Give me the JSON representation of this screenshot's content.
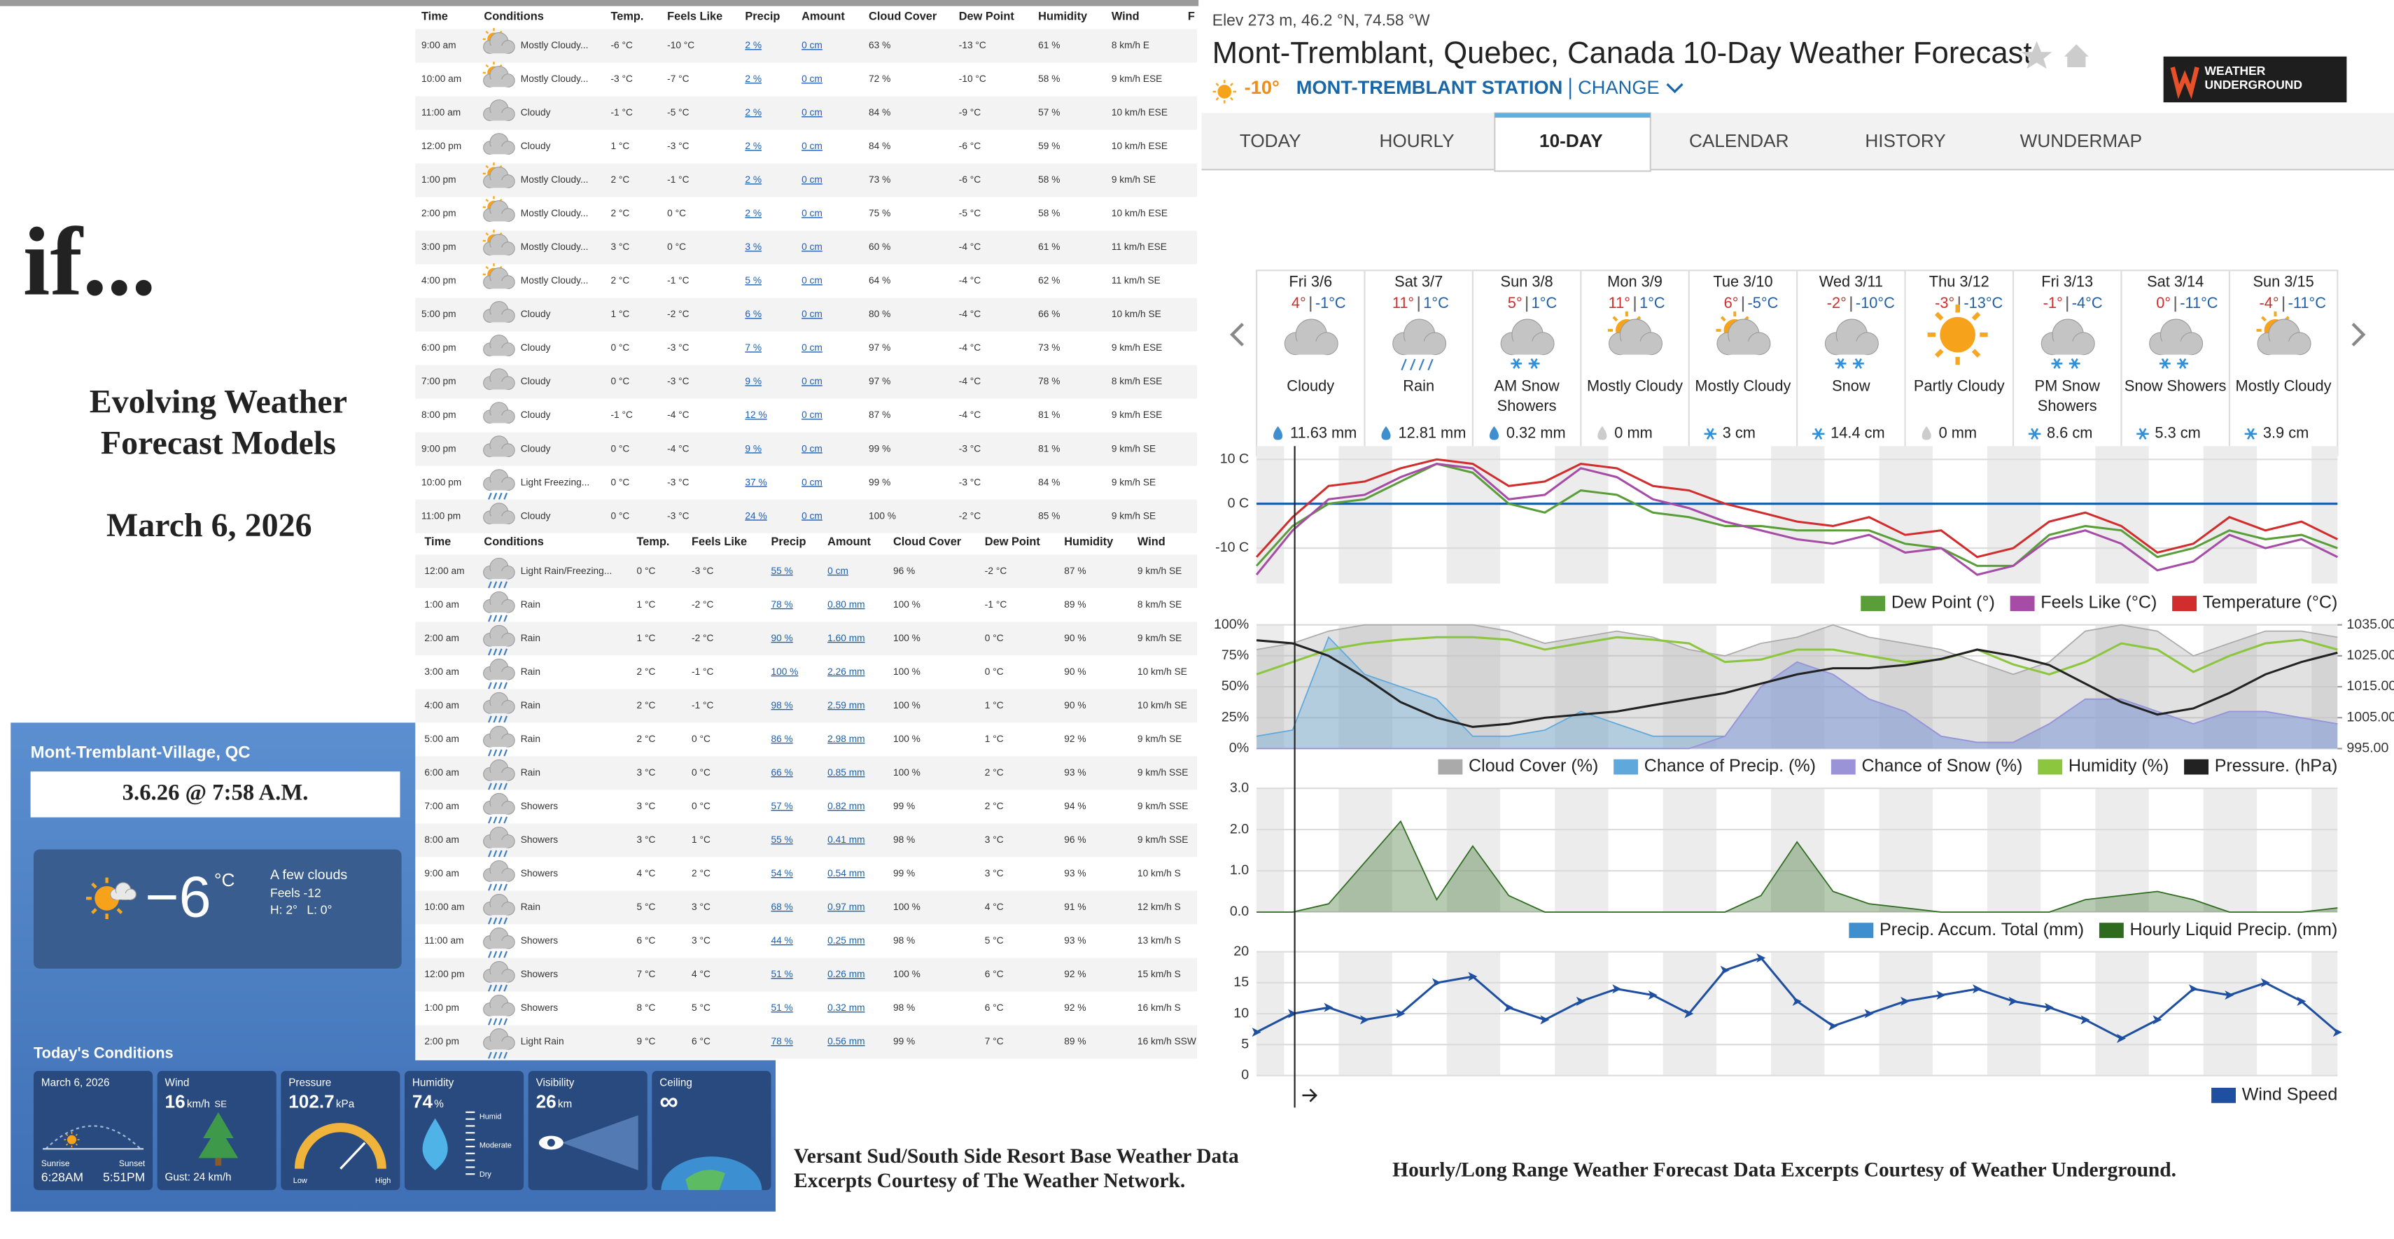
{
  "intro": {
    "headline": "if...",
    "title_lines": [
      "Evolving Weather",
      "Forecast Models"
    ],
    "date": "March 6, 2026"
  },
  "hourly_tables": [
    {
      "columns": [
        "Time",
        "Conditions",
        "Temp.",
        "Feels Like",
        "Precip",
        "Amount",
        "Cloud Cover",
        "Dew Point",
        "Humidity",
        "Wind",
        "F"
      ],
      "rows": [
        [
          "9:00 am",
          "Mostly Cloudy...",
          "-6 °C",
          "-10 °C",
          "2 %",
          "0 cm",
          "63 %",
          "-13 °C",
          "61 %",
          "8 km/h E"
        ],
        [
          "10:00 am",
          "Mostly Cloudy...",
          "-3 °C",
          "-7 °C",
          "2 %",
          "0 cm",
          "72 %",
          "-10 °C",
          "58 %",
          "9 km/h ESE"
        ],
        [
          "11:00 am",
          "Cloudy",
          "-1 °C",
          "-5 °C",
          "2 %",
          "0 cm",
          "84 %",
          "-9 °C",
          "57 %",
          "10 km/h ESE"
        ],
        [
          "12:00 pm",
          "Cloudy",
          "1 °C",
          "-3 °C",
          "2 %",
          "0 cm",
          "84 %",
          "-6 °C",
          "59 %",
          "10 km/h ESE"
        ],
        [
          "1:00 pm",
          "Mostly Cloudy...",
          "2 °C",
          "-1 °C",
          "2 %",
          "0 cm",
          "73 %",
          "-6 °C",
          "58 %",
          "9 km/h SE"
        ],
        [
          "2:00 pm",
          "Mostly Cloudy...",
          "2 °C",
          "0 °C",
          "2 %",
          "0 cm",
          "75 %",
          "-5 °C",
          "58 %",
          "10 km/h ESE"
        ],
        [
          "3:00 pm",
          "Mostly Cloudy...",
          "3 °C",
          "0 °C",
          "3 %",
          "0 cm",
          "60 %",
          "-4 °C",
          "61 %",
          "11 km/h ESE"
        ],
        [
          "4:00 pm",
          "Mostly Cloudy...",
          "2 °C",
          "-1 °C",
          "5 %",
          "0 cm",
          "64 %",
          "-4 °C",
          "62 %",
          "11 km/h SE"
        ],
        [
          "5:00 pm",
          "Cloudy",
          "1 °C",
          "-2 °C",
          "6 %",
          "0 cm",
          "80 %",
          "-4 °C",
          "66 %",
          "10 km/h SE"
        ],
        [
          "6:00 pm",
          "Cloudy",
          "0 °C",
          "-3 °C",
          "7 %",
          "0 cm",
          "97 %",
          "-4 °C",
          "73 %",
          "9 km/h ESE"
        ],
        [
          "7:00 pm",
          "Cloudy",
          "0 °C",
          "-3 °C",
          "9 %",
          "0 cm",
          "97 %",
          "-4 °C",
          "78 %",
          "8 km/h ESE"
        ],
        [
          "8:00 pm",
          "Cloudy",
          "-1 °C",
          "-4 °C",
          "12 %",
          "0 cm",
          "87 %",
          "-4 °C",
          "81 %",
          "9 km/h ESE"
        ],
        [
          "9:00 pm",
          "Cloudy",
          "0 °C",
          "-4 °C",
          "9 %",
          "0 cm",
          "99 %",
          "-3 °C",
          "81 %",
          "9 km/h SE"
        ],
        [
          "10:00 pm",
          "Light Freezing...",
          "0 °C",
          "-3 °C",
          "37 %",
          "0 cm",
          "99 %",
          "-3 °C",
          "84 %",
          "9 km/h SE"
        ],
        [
          "11:00 pm",
          "Cloudy",
          "0 °C",
          "-3 °C",
          "24 %",
          "0 cm",
          "100 %",
          "-2 °C",
          "85 %",
          "9 km/h SE"
        ]
      ]
    },
    {
      "columns": [
        "Time",
        "Conditions",
        "Temp.",
        "Feels Like",
        "Precip",
        "Amount",
        "Cloud Cover",
        "Dew Point",
        "Humidity",
        "Wind"
      ],
      "rows": [
        [
          "12:00 am",
          "Light Rain/Freezing...",
          "0 °C",
          "-3 °C",
          "55 %",
          "0 cm",
          "96 %",
          "-2 °C",
          "87 %",
          "9 km/h SE"
        ],
        [
          "1:00 am",
          "Rain",
          "1 °C",
          "-2 °C",
          "78 %",
          "0.80 mm",
          "100 %",
          "-1 °C",
          "89 %",
          "8 km/h SE"
        ],
        [
          "2:00 am",
          "Rain",
          "1 °C",
          "-2 °C",
          "90 %",
          "1.60 mm",
          "100 %",
          "0 °C",
          "90 %",
          "9 km/h SE"
        ],
        [
          "3:00 am",
          "Rain",
          "2 °C",
          "-1 °C",
          "100 %",
          "2.26 mm",
          "100 %",
          "0 °C",
          "90 %",
          "10 km/h SE"
        ],
        [
          "4:00 am",
          "Rain",
          "2 °C",
          "-1 °C",
          "98 %",
          "2.59 mm",
          "100 %",
          "1 °C",
          "90 %",
          "10 km/h SE"
        ],
        [
          "5:00 am",
          "Rain",
          "2 °C",
          "0 °C",
          "86 %",
          "2.98 mm",
          "100 %",
          "1 °C",
          "92 %",
          "9 km/h SE"
        ],
        [
          "6:00 am",
          "Rain",
          "3 °C",
          "0 °C",
          "66 %",
          "0.85 mm",
          "100 %",
          "2 °C",
          "93 %",
          "9 km/h SSE"
        ],
        [
          "7:00 am",
          "Showers",
          "3 °C",
          "0 °C",
          "57 %",
          "0.82 mm",
          "99 %",
          "2 °C",
          "94 %",
          "9 km/h SSE"
        ],
        [
          "8:00 am",
          "Showers",
          "3 °C",
          "1 °C",
          "55 %",
          "0.41 mm",
          "98 %",
          "3 °C",
          "96 %",
          "9 km/h SSE"
        ],
        [
          "9:00 am",
          "Showers",
          "4 °C",
          "2 °C",
          "54 %",
          "0.54 mm",
          "99 %",
          "3 °C",
          "93 %",
          "10 km/h S"
        ],
        [
          "10:00 am",
          "Rain",
          "5 °C",
          "3 °C",
          "68 %",
          "0.97 mm",
          "100 %",
          "4 °C",
          "91 %",
          "12 km/h S"
        ],
        [
          "11:00 am",
          "Showers",
          "6 °C",
          "3 °C",
          "44 %",
          "0.25 mm",
          "98 %",
          "5 °C",
          "93 %",
          "13 km/h S"
        ],
        [
          "12:00 pm",
          "Showers",
          "7 °C",
          "4 °C",
          "51 %",
          "0.26 mm",
          "100 %",
          "6 °C",
          "92 %",
          "15 km/h S"
        ],
        [
          "1:00 pm",
          "Showers",
          "8 °C",
          "5 °C",
          "51 %",
          "0.32 mm",
          "98 %",
          "6 °C",
          "92 %",
          "16 km/h S"
        ],
        [
          "2:00 pm",
          "Light Rain",
          "9 °C",
          "6 °C",
          "78 %",
          "0.56 mm",
          "99 %",
          "7 °C",
          "89 %",
          "16 km/h SSW"
        ]
      ]
    }
  ],
  "weather_network": {
    "location": "Mont-Tremblant-Village, QC",
    "timestamp": "3.6.26 @ 7:58 A.M.",
    "temperature": "−6",
    "unit": "°C",
    "condition": "A few clouds",
    "feels": "Feels -12",
    "high": "H: 2°",
    "low": "L: 0°",
    "section_title": "Today's Conditions",
    "cards": [
      {
        "title": "March 6, 2026",
        "sunrise_label": "Sunrise",
        "sunrise": "6:28AM",
        "sunset_label": "Sunset",
        "sunset": "5:51PM"
      },
      {
        "title": "Wind",
        "value": "16",
        "unit": "km/h",
        "direction": "SE",
        "detail": "Gust: 24 km/h"
      },
      {
        "title": "Pressure",
        "value": "102.7",
        "unit": "kPa",
        "scale": [
          "Low",
          "High"
        ]
      },
      {
        "title": "Humidity",
        "value": "74",
        "unit": "%",
        "scale": [
          "Humid",
          "Moderate",
          "Dry"
        ]
      },
      {
        "title": "Visibility",
        "value": "26",
        "unit": "km"
      },
      {
        "title": "Ceiling",
        "value": "∞"
      }
    ]
  },
  "captions": {
    "left": [
      "Versant Sud/South Side Resort Base Weather Data",
      "Excerpts Courtesy of The Weather Network."
    ],
    "right": "Hourly/Long Range Weather Forecast Data Excerpts Courtesy of Weather Underground."
  },
  "wunderground": {
    "elevation": "Elev 273 m, 46.2 °N, 74.58 °W",
    "title": "Mont-Tremblant, Quebec, Canada 10-Day Weather Forecast",
    "current_temp": "-10°",
    "station": "MONT-TREMBLANT STATION",
    "change": "CHANGE",
    "logo": [
      "WEATHER",
      "UNDERGROUND"
    ],
    "tabs": [
      "TODAY",
      "HOURLY",
      "10-DAY",
      "CALENDAR",
      "HISTORY",
      "WUNDERMAP"
    ],
    "active_tab": 2,
    "days": [
      {
        "day": "Fri 3/6",
        "high": "4°",
        "low": "-1°C",
        "condition": "Cloudy",
        "precip": "11.63 mm"
      },
      {
        "day": "Sat 3/7",
        "high": "11°",
        "low": "1°C",
        "condition": "Rain",
        "precip": "12.81 mm"
      },
      {
        "day": "Sun 3/8",
        "high": "5°",
        "low": "1°C",
        "condition": "AM Snow Showers",
        "precip": "0.32 mm"
      },
      {
        "day": "Mon 3/9",
        "high": "11°",
        "low": "1°C",
        "condition": "Mostly Cloudy",
        "precip": "0 mm"
      },
      {
        "day": "Tue 3/10",
        "high": "6°",
        "low": "-5°C",
        "condition": "Mostly Cloudy",
        "precip": "3 cm"
      },
      {
        "day": "Wed 3/11",
        "high": "-2°",
        "low": "-10°C",
        "condition": "Snow",
        "precip": "14.4 cm"
      },
      {
        "day": "Thu 3/12",
        "high": "-3°",
        "low": "-13°C",
        "condition": "Partly Cloudy",
        "precip": "0 mm"
      },
      {
        "day": "Fri 3/13",
        "high": "-1°",
        "low": "-4°C",
        "condition": "PM Snow Showers",
        "precip": "8.6 cm"
      },
      {
        "day": "Sat 3/14",
        "high": "0°",
        "low": "-11°C",
        "condition": "Snow Showers",
        "precip": "5.3 cm"
      },
      {
        "day": "Sun 3/15",
        "high": "-4°",
        "low": "-11°C",
        "condition": "Mostly Cloudy",
        "precip": "3.9 cm"
      }
    ]
  },
  "chart_data": [
    {
      "type": "line",
      "zero_line_color": "#1f5fa8",
      "legend": "bottom-right",
      "grid": true,
      "series": [
        {
          "name": "Dew Point (°)",
          "color": "#5a9e3a",
          "values": [
            -14,
            -5,
            0,
            1,
            5,
            9,
            7,
            0,
            -2,
            3,
            2,
            -2,
            -3,
            -5,
            -5,
            -6,
            -6,
            -6,
            -9,
            -10,
            -14,
            -14,
            -7,
            -5,
            -6,
            -12,
            -10,
            -6,
            -8,
            -7,
            -10
          ]
        },
        {
          "name": "Feels Like (°C)",
          "color": "#a64ca6",
          "values": [
            -16,
            -6,
            1,
            2,
            6,
            9,
            8,
            1,
            2,
            8,
            6,
            1,
            -1,
            -4,
            -6,
            -8,
            -9,
            -7,
            -11,
            -10,
            -16,
            -14,
            -8,
            -6,
            -9,
            -15,
            -13,
            -7,
            -10,
            -8,
            -12
          ]
        },
        {
          "name": "Temperature (°C)",
          "color": "#d22d2d",
          "values": [
            -12,
            -3,
            4,
            5,
            8,
            10,
            9,
            4,
            5,
            9,
            8,
            4,
            3,
            0,
            -2,
            -4,
            -5,
            -3,
            -7,
            -6,
            -12,
            -10,
            -4,
            -2,
            -5,
            -11,
            -9,
            -3,
            -6,
            -4,
            -8
          ]
        }
      ],
      "ylim": [
        -18,
        13
      ],
      "yticks": [
        {
          "value": 10,
          "label": "10 C"
        },
        {
          "value": 0,
          "label": "0 C"
        },
        {
          "value": -10,
          "label": "-10 C"
        }
      ]
    },
    {
      "type": "area",
      "legend": "bottom-right",
      "grid": true,
      "series": [
        {
          "name": "Cloud Cover (%)",
          "color": "#aaaaaa",
          "style": "area",
          "values": [
            80,
            85,
            95,
            100,
            100,
            100,
            100,
            95,
            85,
            90,
            95,
            90,
            80,
            75,
            85,
            90,
            100,
            90,
            85,
            80,
            70,
            60,
            70,
            95,
            100,
            95,
            75,
            85,
            95,
            95,
            90
          ]
        },
        {
          "name": "Chance of Precip. (%)",
          "color": "#5fa8dc",
          "style": "area",
          "values": [
            10,
            15,
            90,
            60,
            50,
            40,
            10,
            10,
            15,
            30,
            20,
            10,
            10,
            10,
            50,
            70,
            60,
            40,
            30,
            10,
            5,
            5,
            20,
            40,
            40,
            30,
            20,
            30,
            30,
            25,
            20
          ]
        },
        {
          "name": "Chance of Snow (%)",
          "color": "#9a93d8",
          "style": "area",
          "values": [
            0,
            0,
            0,
            0,
            0,
            0,
            0,
            0,
            0,
            0,
            0,
            0,
            0,
            10,
            50,
            70,
            60,
            40,
            30,
            10,
            5,
            5,
            20,
            40,
            40,
            30,
            20,
            30,
            30,
            25,
            20
          ]
        },
        {
          "name": "Humidity (%)",
          "color": "#8cc63f",
          "style": "line",
          "values": [
            60,
            70,
            80,
            85,
            88,
            90,
            90,
            88,
            80,
            85,
            90,
            88,
            85,
            70,
            72,
            80,
            80,
            75,
            70,
            72,
            80,
            68,
            60,
            70,
            85,
            80,
            62,
            75,
            85,
            88,
            80
          ]
        },
        {
          "name": "Pressure. (hPa)",
          "color": "#222222",
          "style": "line",
          "axis": "y2",
          "values": [
            1030,
            1029,
            1025,
            1018,
            1010,
            1005,
            1002,
            1003,
            1005,
            1006,
            1007,
            1009,
            1011,
            1013,
            1016,
            1019,
            1021,
            1021,
            1022,
            1024,
            1027,
            1025,
            1022,
            1016,
            1010,
            1006,
            1008,
            1013,
            1019,
            1023,
            1026
          ]
        }
      ],
      "ylim": [
        0,
        100
      ],
      "yticks": [
        {
          "value": 100,
          "label": "100%"
        },
        {
          "value": 75,
          "label": "75%"
        },
        {
          "value": 50,
          "label": "50%"
        },
        {
          "value": 25,
          "label": "25%"
        },
        {
          "value": 0,
          "label": "0%"
        }
      ],
      "y2lim": [
        995,
        1035
      ],
      "y2ticks": [
        {
          "value": 1035,
          "label": "1035.00"
        },
        {
          "value": 1025,
          "label": "1025.00"
        },
        {
          "value": 1015,
          "label": "1015.00"
        },
        {
          "value": 1005,
          "label": "1005.00"
        },
        {
          "value": 995,
          "label": "995.00"
        }
      ]
    },
    {
      "type": "area",
      "legend": "bottom-right",
      "grid": true,
      "series": [
        {
          "name": "Precip. Accum. Total (mm)",
          "color": "#3f8fcf"
        },
        {
          "name": "Hourly Liquid Precip. (mm)",
          "color": "#2e6b1f",
          "style": "area",
          "values": [
            0,
            0,
            0.2,
            1.2,
            2.2,
            0.3,
            1.6,
            0.4,
            0,
            0,
            0,
            0,
            0,
            0,
            0.4,
            1.7,
            0.5,
            0.2,
            0.1,
            0,
            0,
            0,
            0,
            0.3,
            0.4,
            0.5,
            0.3,
            0,
            0,
            0,
            0.1
          ]
        }
      ],
      "ylim": [
        0,
        3
      ],
      "yticks": [
        {
          "value": 3,
          "label": "3.0"
        },
        {
          "value": 2,
          "label": "2.0"
        },
        {
          "value": 1,
          "label": "1.0"
        },
        {
          "value": 0,
          "label": "0.0"
        }
      ]
    },
    {
      "type": "line",
      "legend": "bottom-right",
      "grid": true,
      "series": [
        {
          "name": "Wind Speed",
          "color": "#1f4fa0",
          "markers": true,
          "values": [
            7,
            10,
            11,
            9,
            10,
            15,
            16,
            11,
            9,
            12,
            14,
            13,
            10,
            17,
            19,
            12,
            8,
            10,
            12,
            13,
            14,
            12,
            11,
            9,
            6,
            9,
            14,
            13,
            15,
            12,
            7
          ]
        }
      ],
      "ylim": [
        0,
        20
      ],
      "yticks": [
        20,
        15,
        10,
        5,
        0
      ]
    }
  ]
}
